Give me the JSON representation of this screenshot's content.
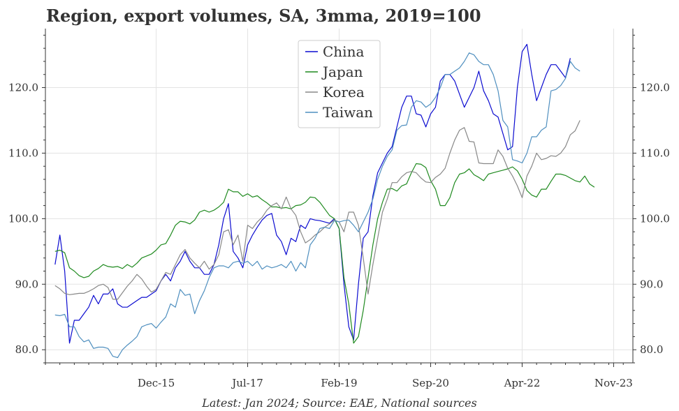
{
  "chart_data": {
    "type": "line",
    "title": "Region, export volumes, SA, 3mma, 2019=100",
    "source": "Latest: Jan 2024; Source: EAE, National sources",
    "x_tick_labels": [
      "Dec-15",
      "Jul-17",
      "Feb-19",
      "Sep-20",
      "Apr-22",
      "Nov-23"
    ],
    "y_ticks": [
      80,
      90,
      100,
      110,
      120
    ],
    "y_tick_labels": [
      "80.0",
      "90.0",
      "100.0",
      "110.0",
      "120.0"
    ],
    "ylim": [
      78,
      129
    ],
    "x_range": [
      "Jan-14",
      "Mar-24"
    ],
    "x_start": "Mar-14",
    "x_step": "1 month",
    "grid": true,
    "legend_position": "top-center",
    "series": [
      {
        "name": "China",
        "color": "#0b0bd0",
        "values": [
          93,
          97.5,
          92,
          81,
          84.5,
          84.5,
          85.5,
          86.5,
          88.3,
          87,
          88.5,
          88.5,
          89.3,
          87,
          86.5,
          86.5,
          87,
          87.5,
          88,
          88,
          88.5,
          89,
          90.5,
          91.5,
          90.5,
          92.5,
          93.5,
          95,
          93.5,
          92.5,
          92.5,
          91.5,
          91.5,
          93,
          96,
          100,
          102.3,
          95,
          94,
          92.5,
          96,
          97.5,
          98.7,
          99.8,
          100.5,
          100.8,
          97.5,
          96.5,
          94.5,
          97,
          96.5,
          99,
          98.5,
          100,
          99.8,
          99.7,
          99.5,
          99.3,
          100,
          98.5,
          90,
          83.5,
          81.5,
          90,
          97,
          98,
          103.5,
          107,
          108.5,
          110,
          111,
          114,
          117,
          118.7,
          118.7,
          116,
          115.8,
          114,
          116,
          117,
          121,
          122,
          122,
          121,
          119,
          117,
          118.5,
          120,
          122.5,
          119.5,
          118,
          116,
          115.5,
          113,
          110.5,
          111,
          120,
          125.5,
          126.6,
          122,
          118,
          120,
          122,
          123.5,
          123.5,
          122.5,
          121.5,
          124.5
        ]
      },
      {
        "name": "Japan",
        "color": "#1f8a1f",
        "values": [
          95,
          95.2,
          94.8,
          92.5,
          92,
          91.3,
          91,
          91.2,
          92,
          92.4,
          93,
          92.7,
          92.6,
          92.7,
          92.4,
          93,
          92.6,
          93.2,
          94,
          94.3,
          94.6,
          95.2,
          96,
          96.2,
          97.5,
          99,
          99.6,
          99.5,
          99.2,
          99.8,
          101,
          101.3,
          101,
          101.3,
          101.8,
          102.5,
          104.5,
          104.1,
          104.1,
          103.4,
          103.8,
          103.3,
          103.5,
          102.9,
          102.4,
          101.8,
          101.8,
          101.6,
          101.7,
          101.5,
          102,
          102.1,
          102.5,
          103.3,
          103.2,
          102.5,
          101.5,
          100.5,
          100,
          98.5,
          91,
          87,
          81,
          82,
          86,
          91,
          96,
          100,
          102.5,
          104.5,
          104.6,
          104.2,
          105,
          105.3,
          107,
          108.4,
          108.3,
          107.8,
          105.8,
          104.5,
          102,
          102,
          103.2,
          105.5,
          106.8,
          107,
          107.6,
          106.7,
          106.3,
          105.8,
          106.8,
          107,
          107.2,
          107.4,
          107.6,
          107.9,
          107.3,
          106,
          104.3,
          103.6,
          103.3,
          104.5,
          104.5,
          105.7,
          106.8,
          106.8,
          106.6,
          106.2,
          105.8,
          105.6,
          106.5,
          105.3,
          104.8
        ]
      },
      {
        "name": "Korea",
        "color": "#888888",
        "values": [
          89.8,
          89.3,
          88.6,
          88.4,
          88.5,
          88.6,
          88.6,
          88.9,
          89.3,
          89.8,
          90,
          89.5,
          87.7,
          87.7,
          88.7,
          89.7,
          90.5,
          91.5,
          90.8,
          89.7,
          88.8,
          89.2,
          90.5,
          91.8,
          91.5,
          93,
          94.5,
          95.3,
          94,
          93.2,
          92.5,
          93.5,
          92.3,
          93,
          94.5,
          98,
          98.3,
          96,
          97.5,
          93.5,
          99,
          98.5,
          99.5,
          100.2,
          101.3,
          102,
          102.4,
          101.5,
          103.3,
          101.5,
          100.5,
          98,
          96.3,
          96.8,
          97.5,
          98,
          98.7,
          99.2,
          99.8,
          99.5,
          98,
          101,
          101,
          99,
          94,
          88.5,
          93,
          97,
          101,
          103,
          105.5,
          105.5,
          106.4,
          107,
          107.2,
          107,
          106.2,
          105.6,
          105.5,
          106.3,
          106.8,
          107.7,
          110,
          112,
          113.5,
          113.9,
          111.8,
          111.7,
          108.5,
          108.4,
          108.4,
          108.4,
          110.5,
          109.5,
          107.7,
          106.5,
          105,
          103.2,
          106.5,
          108,
          110,
          109,
          109.2,
          109.6,
          109.5,
          110,
          111,
          112.8,
          113.4,
          115
        ]
      },
      {
        "name": "Taiwan",
        "color": "#4f8fbf",
        "values": [
          85.3,
          85.2,
          85.4,
          83.5,
          83.5,
          82,
          81.2,
          81.5,
          80.2,
          80.4,
          80.4,
          80.2,
          79,
          78.8,
          80,
          80.7,
          81.3,
          82,
          83.5,
          83.8,
          84,
          83.3,
          84.2,
          85,
          87,
          86.5,
          89.2,
          88.3,
          88.5,
          85.5,
          87.5,
          89,
          91,
          92.5,
          92.8,
          92.8,
          92.5,
          93.3,
          93.5,
          93.2,
          93.5,
          92.8,
          93.5,
          92.3,
          92.8,
          92.5,
          92.7,
          93,
          92.5,
          93.5,
          92,
          93.3,
          92.5,
          96,
          97,
          98.5,
          98.7,
          98.5,
          99.7,
          99.5,
          99.7,
          99.8,
          99,
          98,
          99.5,
          101,
          103,
          106,
          108,
          109.5,
          110.5,
          113.5,
          114.2,
          114.3,
          117,
          118,
          117.8,
          117,
          117.5,
          118.5,
          120,
          122,
          122,
          122.5,
          123,
          124,
          125.3,
          125,
          124,
          123.5,
          123.5,
          122,
          119.5,
          115,
          114,
          109,
          108.8,
          108.5,
          110,
          112.5,
          112.5,
          113.5,
          114,
          119.5,
          119.7,
          120.3,
          121.4,
          124,
          123,
          122.5
        ]
      }
    ]
  }
}
